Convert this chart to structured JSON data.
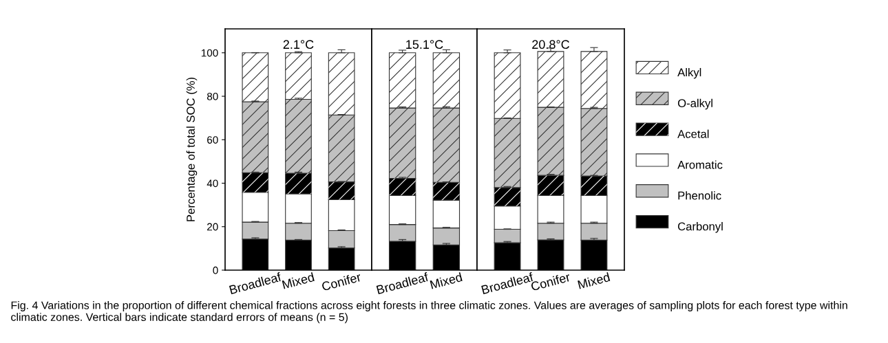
{
  "chart_data": [
    {
      "type": "bar",
      "title": "2.1°C",
      "ylabel": "Percentage of total SOC (%)",
      "stacked": true,
      "categories": [
        "Broadleaf",
        "Mixed",
        "Conifer"
      ],
      "ylim": [
        0,
        111
      ],
      "yticks": [
        0,
        20,
        40,
        60,
        80,
        100
      ],
      "legend": "right",
      "annotations": [
        "Fig. 4 Variations in the proportion of different chemical fractions across eight forests in three climatic zones. Values are averages of sampling plots for each forest type within climatic zones. Vertical bars indicate standard errors of means (n = 5)"
      ],
      "series": [
        {
          "name": "Carbonyl",
          "color": "#000000",
          "values": [
            14.3,
            13.8,
            10.2
          ],
          "errors": [
            0.6,
            0.3,
            0.6
          ]
        },
        {
          "name": "Phenolic",
          "color": "#c0c0c0",
          "values": [
            7.8,
            7.8,
            8.0
          ],
          "errors": [
            0.3,
            0.3,
            0.3
          ]
        },
        {
          "name": "Aromatic",
          "color": "#ffffff",
          "values": [
            13.7,
            13.5,
            14.2
          ]
        },
        {
          "name": "Acetal",
          "color": "#000000",
          "values": [
            9.0,
            9.5,
            8.2
          ],
          "errors": [
            0.3,
            0.5,
            0.2
          ]
        },
        {
          "name": "O-alkyl",
          "color": "#c0c0c0",
          "values": [
            32.7,
            34.0,
            30.8
          ],
          "errors": [
            0.3,
            0.5,
            0.2
          ]
        },
        {
          "name": "Alkyl",
          "color": "#ffffff",
          "values": [
            22.5,
            21.4,
            28.6
          ],
          "errors": [
            0.1,
            0.5,
            1.4
          ]
        }
      ]
    },
    {
      "type": "bar",
      "title": "15.1°C",
      "stacked": true,
      "categories": [
        "Broadleaf",
        "Mixed"
      ],
      "ylim": [
        0,
        111
      ],
      "tick_labels": "x",
      "series": [
        {
          "color": "#000000",
          "values": [
            13.3,
            11.6
          ],
          "errors": [
            0.8,
            0.7
          ]
        },
        {
          "color": "#c0c0c0",
          "values": [
            7.7,
            7.8
          ],
          "errors": [
            0.3,
            0.3
          ]
        },
        {
          "color": "#ffffff",
          "values": [
            13.4,
            12.8
          ]
        },
        {
          "color": "#000000",
          "values": [
            7.8,
            8.2
          ],
          "errors": [
            0.5,
            0.2
          ]
        },
        {
          "color": "#c0c0c0",
          "values": [
            32.4,
            34.2
          ],
          "errors": [
            0.5,
            0.6
          ]
        },
        {
          "color": "#ffffff",
          "values": [
            25.4,
            25.4
          ],
          "errors": [
            1.2,
            1.4
          ]
        }
      ]
    },
    {
      "type": "bar",
      "title": "20.8°C",
      "stacked": true,
      "categories": [
        "Broadleaf",
        "Conifer",
        "Mixed"
      ],
      "ylim": [
        0,
        111
      ],
      "tick_labels": "x",
      "series": [
        {
          "color": "#000000",
          "values": [
            12.6,
            13.9,
            13.8
          ],
          "errors": [
            0.6,
            0.5,
            0.8
          ]
        },
        {
          "color": "#c0c0c0",
          "values": [
            6.2,
            7.7,
            7.8
          ],
          "errors": [
            0.2,
            0.5,
            0.5
          ]
        },
        {
          "color": "#ffffff",
          "values": [
            10.7,
            12.8,
            12.8
          ]
        },
        {
          "color": "#000000",
          "values": [
            8.5,
            9.2,
            8.9
          ],
          "errors": [
            0.5,
            0.5,
            0.3
          ]
        },
        {
          "color": "#c0c0c0",
          "values": [
            31.8,
            31.3,
            31.1
          ],
          "errors": [
            0.2,
            0.2,
            0.5
          ]
        },
        {
          "color": "#ffffff",
          "values": [
            30.2,
            25.7,
            26.2
          ],
          "errors": [
            1.3,
            1.6,
            1.8
          ]
        }
      ]
    }
  ]
}
